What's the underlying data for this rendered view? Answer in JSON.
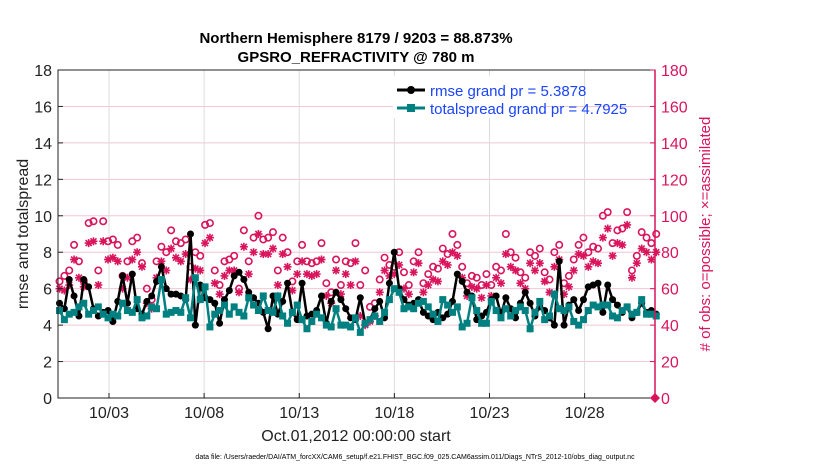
{
  "chart_data": {
    "type": "line",
    "title_line1": "Northern Hemisphere 8179 / 9203 = 88.873%",
    "title_line2": "GPSRO_REFRACTIVITY @ 780 m",
    "xlabel": "Oct.01,2012 00:00:00 start",
    "ylabel_left": "rmse and totalspread",
    "ylabel_right": "# of obs: o=possible; ×=assimilated",
    "footnote": "data file: /Users/raeder/DAI/ATM_forcXX/CAM6_setup/f.e21.FHIST_BGC.f09_025.CAM6assim.011/Diags_NTrS_2012-10/obs_diag_output.nc",
    "xlim_day_of_month": [
      0.32,
      31.7
    ],
    "x_ticks": [
      {
        "day": 3,
        "label": "10/03"
      },
      {
        "day": 8,
        "label": "10/08"
      },
      {
        "day": 13,
        "label": "10/13"
      },
      {
        "day": 18,
        "label": "10/18"
      },
      {
        "day": 23,
        "label": "10/23"
      },
      {
        "day": 28,
        "label": "10/28"
      }
    ],
    "ylim_left": [
      0,
      18
    ],
    "yticks_left": [
      "0",
      "2",
      "4",
      "6",
      "8",
      "10",
      "12",
      "14",
      "16",
      "18"
    ],
    "ylim_right": [
      0,
      180
    ],
    "yticks_right": [
      "0",
      "20",
      "40",
      "60",
      "80",
      "100",
      "120",
      "140",
      "160",
      "180"
    ],
    "grid": true,
    "legend_placement": "top-right",
    "first_time_day": 0.4,
    "time_step_days": 0.255,
    "colors": {
      "rmse": "#000000",
      "totalspread": "#008080",
      "obs": "#d9145c",
      "legend_text": "#1a44ff"
    },
    "series": [
      {
        "name": "rmse grand pr = 5.3878",
        "axis": "left",
        "marker": "filled-circle",
        "values": [
          5.2,
          4.9,
          6.5,
          5.6,
          4.5,
          6.5,
          6.1,
          4.9,
          4.5,
          4.7,
          4.8,
          4.2,
          5.3,
          6.7,
          5.2,
          6.8,
          4.9,
          4.6,
          5.3,
          5.6,
          6.4,
          7.2,
          6.0,
          5.7,
          5.7,
          5.6,
          5.4,
          9.0,
          4.0,
          6.2,
          5.5,
          5.4,
          5.2,
          4.1,
          5.4,
          5.9,
          6.7,
          6.9,
          6.5,
          5.8,
          5.5,
          5.2,
          4.7,
          3.8,
          5.6,
          4.6,
          5.3,
          6.3,
          4.7,
          4.3,
          6.3,
          4.5,
          4.6,
          4.8,
          5.6,
          4.1,
          5.3,
          5.8,
          5.4,
          4.9,
          4.4,
          4.3,
          5.5,
          4.1,
          4.3,
          4.9,
          5.3,
          4.4,
          6.3,
          8.0,
          6.0,
          5.4,
          5.1,
          5.2,
          5.4,
          4.7,
          4.5,
          4.3,
          4.7,
          4.4,
          4.6,
          5.3,
          6.8,
          6.4,
          5.8,
          5.6,
          4.3,
          4.5,
          4.7,
          5.4,
          5.6,
          4.6,
          5.5,
          4.9,
          4.4,
          5.2,
          5.8,
          5.2,
          4.5,
          5.0,
          4.8,
          4.4,
          4.0,
          7.5,
          4.0,
          5.1,
          5.4,
          4.8,
          5.4,
          6.1,
          6.2,
          6.3,
          4.7,
          6.2,
          5.4,
          5.1,
          4.7,
          5.0,
          4.4,
          4.7,
          5.2,
          4.7,
          4.8,
          4.6
        ]
      },
      {
        "name": "totalspread grand pr = 4.7925",
        "axis": "left",
        "marker": "filled-square",
        "values": [
          4.8,
          4.3,
          4.6,
          4.7,
          5.0,
          5.2,
          4.6,
          4.8,
          5.0,
          4.6,
          4.4,
          4.6,
          4.5,
          5.2,
          4.8,
          4.7,
          5.4,
          4.4,
          4.5,
          5.0,
          4.9,
          6.5,
          4.6,
          4.7,
          4.8,
          4.7,
          5.5,
          4.4,
          6.6,
          5.4,
          6.1,
          3.9,
          4.6,
          4.8,
          5.1,
          4.6,
          5.0,
          4.7,
          4.5,
          5.5,
          5.1,
          4.8,
          5.6,
          4.8,
          4.7,
          5.6,
          4.5,
          4.1,
          4.7,
          5.1,
          4.3,
          3.8,
          4.2,
          4.6,
          4.4,
          4.0,
          3.9,
          4.9,
          4.0,
          4.0,
          3.9,
          4.4,
          3.6,
          4.1,
          4.3,
          4.5,
          4.2,
          4.7,
          5.4,
          6.0,
          5.8,
          4.9,
          5.0,
          4.9,
          5.2,
          5.3,
          5.0,
          4.6,
          4.2,
          5.4,
          5.1,
          4.7,
          5.0,
          3.9,
          4.1,
          5.5,
          4.8,
          4.1,
          4.1,
          5.3,
          4.8,
          4.4,
          4.9,
          4.5,
          4.8,
          5.0,
          4.8,
          3.8,
          4.7,
          5.3,
          4.3,
          4.5,
          5.7,
          4.9,
          4.8,
          5.0,
          4.2,
          4.0,
          4.3,
          4.8,
          5.1,
          5.0,
          5.1,
          5.1,
          4.5,
          4.4,
          4.8,
          5.0,
          4.6,
          4.7,
          5.4,
          4.6,
          4.6,
          4.5
        ]
      },
      {
        "axis": "right",
        "marker": "open-circle",
        "label": "possible",
        "values": [
          64,
          67,
          70,
          84,
          75,
          64,
          96,
          97,
          70,
          97,
          86,
          87,
          84,
          67,
          75,
          86,
          88,
          74,
          60,
          54,
          75,
          83,
          80,
          92,
          86,
          85,
          87,
          72,
          80,
          78,
          95,
          96,
          70,
          62,
          75,
          76,
          78,
          60,
          92,
          75,
          88,
          100,
          87,
          88,
          91,
          70,
          88,
          80,
          64,
          75,
          84,
          75,
          74,
          75,
          85,
          63,
          58,
          76,
          62,
          75,
          74,
          85,
          62,
          70,
          50,
          52,
          65,
          77,
          73,
          72,
          80,
          69,
          62,
          75,
          80,
          63,
          68,
          72,
          71,
          82,
          79,
          90,
          84,
          72,
          63,
          67,
          66,
          62,
          68,
          62,
          72,
          70,
          90,
          80,
          77,
          69,
          66,
          80,
          78,
          82,
          69,
          65,
          80,
          84,
          63,
          67,
          76,
          84,
          88,
          80,
          83,
          82,
          100,
          102,
          85,
          92,
          93,
          102,
          70,
          78,
          91,
          88,
          85,
          90
        ]
      },
      {
        "axis": "right",
        "marker": "asterisk",
        "label": "assimilated",
        "values": [
          60,
          59,
          62,
          76,
          66,
          61,
          85,
          86,
          62,
          86,
          76,
          77,
          75,
          60,
          66,
          76,
          80,
          72,
          52,
          49,
          66,
          75,
          70,
          82,
          77,
          75,
          79,
          65,
          71,
          70,
          85,
          88,
          63,
          57,
          67,
          70,
          70,
          58,
          83,
          68,
          80,
          90,
          79,
          79,
          82,
          62,
          79,
          72,
          59,
          68,
          75,
          68,
          67,
          68,
          76,
          56,
          52,
          70,
          57,
          68,
          62,
          75,
          45,
          40,
          42,
          45,
          58,
          70,
          67,
          68,
          73,
          60,
          57,
          69,
          74,
          58,
          62,
          65,
          64,
          75,
          73,
          80,
          78,
          66,
          56,
          61,
          60,
          55,
          62,
          56,
          66,
          63,
          79,
          72,
          70,
          63,
          60,
          74,
          70,
          74,
          64,
          58,
          72,
          76,
          57,
          61,
          70,
          79,
          78,
          72,
          75,
          74,
          88,
          93,
          78,
          85,
          84,
          95,
          66,
          74,
          82,
          80,
          76,
          80
        ]
      }
    ],
    "end_marker": {
      "day": 31.7,
      "value": 0
    }
  }
}
